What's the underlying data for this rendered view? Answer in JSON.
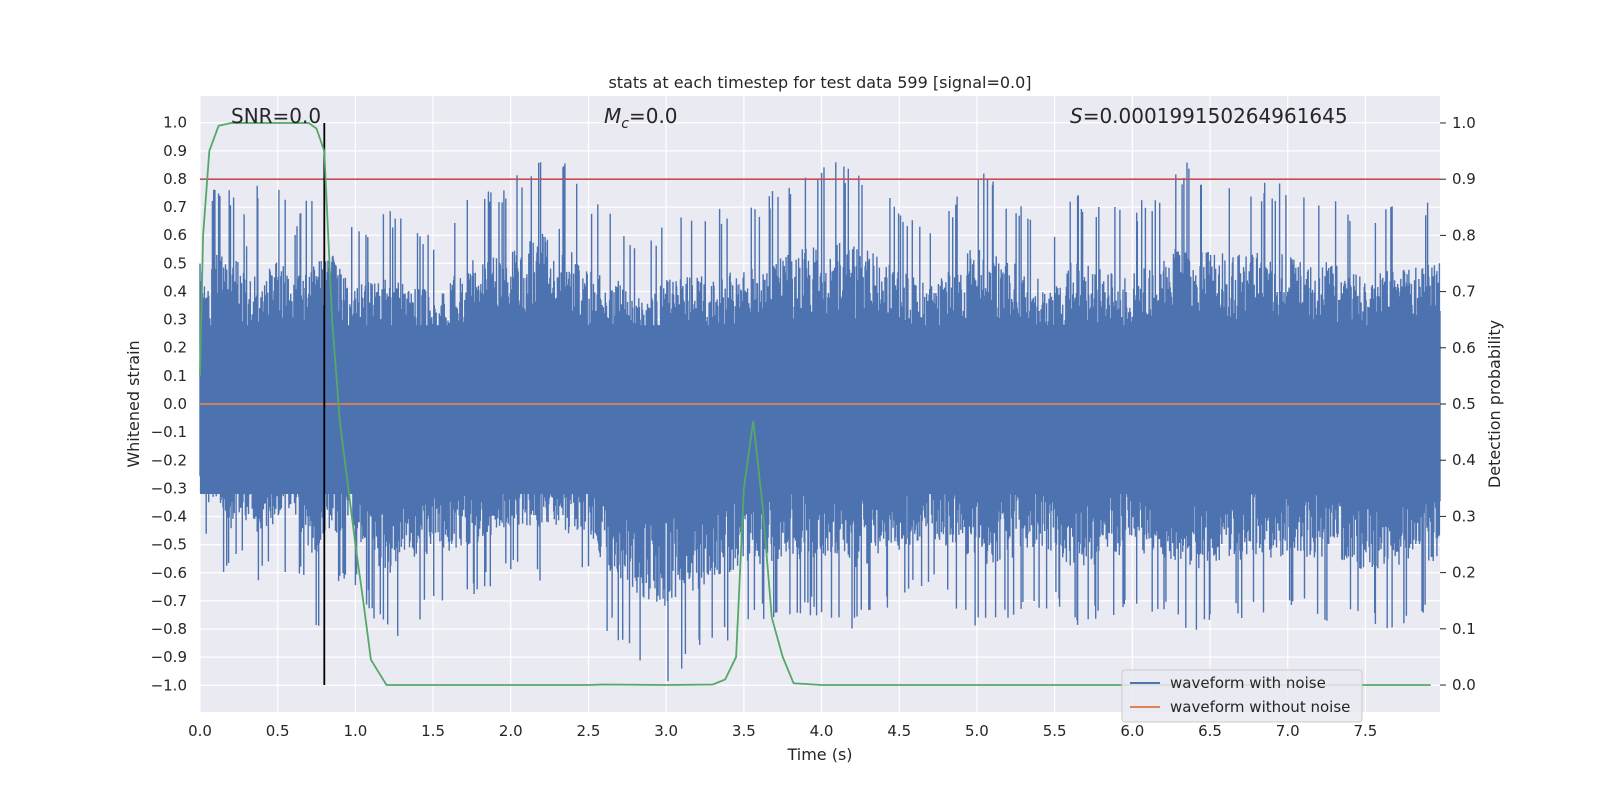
{
  "chart_data": {
    "type": "line",
    "title": "stats at each timestep for test data 599 [signal=0.0]",
    "xlabel": "Time (s)",
    "ylabel": "Whitened strain",
    "y2label": "Detection probability",
    "xlim": [
      0.0,
      7.98
    ],
    "ylim": [
      -1.095,
      1.095
    ],
    "y2lim": [
      -0.048,
      1.048
    ],
    "x_ticks": [
      0.0,
      0.5,
      1.0,
      1.5,
      2.0,
      2.5,
      3.0,
      3.5,
      4.0,
      4.5,
      5.0,
      5.5,
      6.0,
      6.5,
      7.0,
      7.5
    ],
    "x_tick_labels": [
      "0.0",
      "0.5",
      "1.0",
      "1.5",
      "2.0",
      "2.5",
      "3.0",
      "3.5",
      "4.0",
      "4.5",
      "5.0",
      "5.5",
      "6.0",
      "6.5",
      "7.0",
      "7.5"
    ],
    "y_ticks": [
      1.0,
      0.9,
      0.8,
      0.7,
      0.6,
      0.5,
      0.4,
      0.3,
      0.2,
      0.1,
      0.0,
      -0.1,
      -0.2,
      -0.3,
      -0.4,
      -0.5,
      -0.6,
      -0.7,
      -0.8,
      -0.9,
      -1.0
    ],
    "y_tick_labels": [
      "1.0",
      "0.9",
      "0.8",
      "0.7",
      "0.6",
      "0.5",
      "0.4",
      "0.3",
      "0.2",
      "0.1",
      "0.0",
      "−0.1",
      "−0.2",
      "−0.3",
      "−0.4",
      "−0.5",
      "−0.6",
      "−0.7",
      "−0.8",
      "−0.9",
      "−1.0"
    ],
    "y2_ticks": [
      1.0,
      0.9,
      0.8,
      0.7,
      0.6,
      0.5,
      0.4,
      0.3,
      0.2,
      0.1,
      0.0
    ],
    "y2_tick_labels": [
      "1.0",
      "0.9",
      "0.8",
      "0.7",
      "0.6",
      "0.5",
      "0.4",
      "0.3",
      "0.2",
      "0.1",
      "0.0"
    ],
    "grid": true,
    "legend": {
      "placement": "lower-right",
      "entries": [
        "waveform with noise",
        "waveform without noise"
      ]
    },
    "annotations": {
      "snr": "SNR=0.0",
      "mc_symbol": "M",
      "mc_sub": "c",
      "mc_value": "=0.0",
      "s_symbol": "S",
      "s_value": "=0.000199150264961645"
    },
    "series": [
      {
        "name": "waveform with noise",
        "axis": "left",
        "color": "#4c72b0",
        "style": "dense noise, approx. ±0.4 body with spikes to about ±0.95",
        "envelope_x": [
          0.0,
          0.05,
          0.1,
          0.15,
          0.2,
          0.25,
          0.3,
          0.35,
          0.45,
          0.5,
          0.6,
          0.75,
          0.85,
          1.0,
          1.2,
          1.5,
          1.75,
          2.0,
          2.3,
          2.5,
          2.6,
          2.85,
          3.0,
          3.5,
          4.0,
          4.2,
          4.7,
          5.0,
          5.5,
          5.6,
          6.0,
          6.4,
          6.5,
          7.0,
          7.5,
          7.98
        ],
        "envelope_max": [
          0.79,
          0.6,
          0.83,
          0.8,
          0.75,
          0.85,
          0.6,
          0.8,
          0.75,
          0.8,
          0.65,
          0.78,
          0.8,
          0.62,
          0.7,
          0.6,
          0.78,
          0.8,
          0.95,
          0.7,
          0.72,
          0.55,
          0.68,
          0.7,
          0.86,
          0.86,
          0.62,
          0.86,
          0.62,
          0.75,
          0.7,
          0.88,
          0.8,
          0.8,
          0.7,
          0.75
        ],
        "envelope_min": [
          -0.45,
          -0.5,
          -0.46,
          -0.6,
          -0.63,
          -0.55,
          -0.6,
          -0.66,
          -0.6,
          -0.65,
          -0.55,
          -0.82,
          -0.65,
          -0.65,
          -0.85,
          -0.75,
          -0.7,
          -0.6,
          -0.65,
          -0.62,
          -0.8,
          -0.96,
          -1.0,
          -0.8,
          -0.75,
          -0.83,
          -0.65,
          -0.8,
          -0.72,
          -0.84,
          -0.72,
          -0.82,
          -0.78,
          -0.75,
          -0.82,
          -0.77
        ]
      },
      {
        "name": "waveform without noise",
        "axis": "left",
        "color": "#dd8452",
        "x": [
          0.0,
          7.98
        ],
        "values": [
          0.0,
          0.0
        ]
      },
      {
        "name": "",
        "axis": "right",
        "color": "#55a868",
        "x": [
          0.0,
          0.02,
          0.06,
          0.12,
          0.2,
          0.3,
          0.4,
          0.5,
          0.6,
          0.7,
          0.75,
          0.8,
          0.85,
          0.9,
          1.0,
          1.05,
          1.1,
          1.2,
          1.5,
          2.0,
          2.5,
          2.6,
          3.0,
          3.3,
          3.38,
          3.45,
          3.5,
          3.56,
          3.62,
          3.68,
          3.75,
          3.82,
          4.0,
          5.0,
          6.0,
          7.0,
          7.92
        ],
        "values": [
          0.55,
          0.8,
          0.95,
          0.995,
          1.0,
          1.0,
          1.0,
          1.0,
          1.0,
          1.0,
          0.99,
          0.95,
          0.65,
          0.47,
          0.25,
          0.15,
          0.045,
          0.0,
          0.0,
          0.0,
          0.0,
          0.001,
          0.0,
          0.001,
          0.01,
          0.05,
          0.35,
          0.47,
          0.32,
          0.12,
          0.05,
          0.003,
          0.0,
          0.0,
          0.0,
          0.0,
          0.0
        ]
      }
    ],
    "reference_lines": {
      "threshold_y2": 0.9,
      "threshold_color": "#c44e52",
      "marker_x": 0.8,
      "marker_y2_range": [
        0.0,
        1.0
      ],
      "marker_color": "#000000"
    }
  }
}
